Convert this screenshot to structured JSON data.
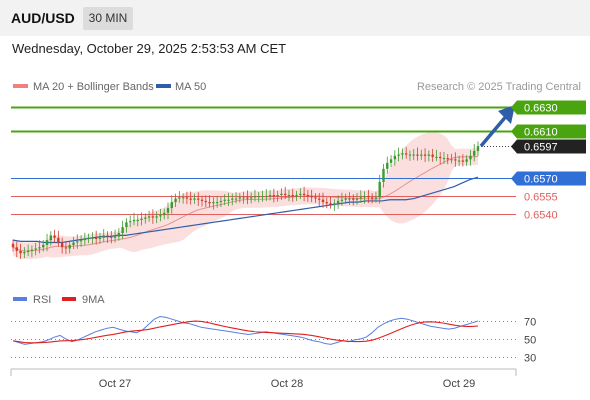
{
  "header": {
    "symbol": "AUD/USD",
    "timeframe": "30 MIN"
  },
  "datetime": "Wednesday, October 29, 2025 2:53:53 AM CET",
  "legend": {
    "ma_bb_label": "MA 20 + Bollinger Bands",
    "ma50_label": "MA 50",
    "ma_bb_color": "#f08080",
    "ma50_color": "#2f5ea8",
    "credit": "Research © 2025 Trading Central"
  },
  "colors": {
    "resistance": "#4aa410",
    "pivot": "#2f6fd6",
    "support": "#e06060",
    "current": "#222222",
    "bull_candle": "#3a9b2e",
    "bear_candle": "#d23b2b",
    "arrow": "#2f5ea8",
    "rsi": "#5b7fe0",
    "rsi_ma": "#e02020"
  },
  "chart_data": [
    {
      "type": "candlestick",
      "title": "AUD/USD",
      "timeframe": "30 MIN",
      "x_ticks": [
        "Oct 27",
        "Oct 28",
        "Oct 29"
      ],
      "ylim": [
        0.65,
        0.664
      ],
      "levels": [
        {
          "value": 0.663,
          "label": "0.6630",
          "kind": "resistance"
        },
        {
          "value": 0.661,
          "label": "0.6610",
          "kind": "resistance"
        },
        {
          "value": 0.6597,
          "label": "0.6597",
          "kind": "current"
        },
        {
          "value": 0.657,
          "label": "0.6570",
          "kind": "pivot"
        },
        {
          "value": 0.6555,
          "label": "0.6555",
          "kind": "support"
        },
        {
          "value": 0.654,
          "label": "0.6540",
          "kind": "support"
        }
      ],
      "close_series": [
        0.6512,
        0.6509,
        0.6507,
        0.6508,
        0.6509,
        0.651,
        0.6511,
        0.6512,
        0.6514,
        0.6518,
        0.6522,
        0.652,
        0.6516,
        0.6512,
        0.6511,
        0.6514,
        0.6516,
        0.6517,
        0.6518,
        0.6519,
        0.652,
        0.652,
        0.6519,
        0.652,
        0.6522,
        0.6521,
        0.652,
        0.6521,
        0.6524,
        0.6529,
        0.6533,
        0.6534,
        0.6535,
        0.6535,
        0.6536,
        0.6537,
        0.6538,
        0.6537,
        0.6538,
        0.6539,
        0.6541,
        0.6545,
        0.655,
        0.6553,
        0.6554,
        0.6554,
        0.6553,
        0.6552,
        0.6553,
        0.6552,
        0.6551,
        0.655,
        0.6549,
        0.655,
        0.655,
        0.6551,
        0.6552,
        0.6552,
        0.6553,
        0.6553,
        0.6554,
        0.6554,
        0.6553,
        0.6554,
        0.6555,
        0.6555,
        0.6555,
        0.6555,
        0.6556,
        0.6555,
        0.6556,
        0.6557,
        0.6556,
        0.6556,
        0.6555,
        0.6556,
        0.6557,
        0.6556,
        0.6555,
        0.6554,
        0.6553,
        0.6552,
        0.655,
        0.6549,
        0.6548,
        0.6549,
        0.6551,
        0.6552,
        0.6553,
        0.6553,
        0.6552,
        0.6553,
        0.6554,
        0.6555,
        0.6554,
        0.6553,
        0.6554,
        0.6567,
        0.6578,
        0.6583,
        0.6586,
        0.6589,
        0.659,
        0.6591,
        0.659,
        0.659,
        0.659,
        0.6589,
        0.659,
        0.6589,
        0.659,
        0.6588,
        0.6588,
        0.6587,
        0.6587,
        0.6586,
        0.6586,
        0.6585,
        0.6585,
        0.6584,
        0.6586,
        0.6589,
        0.6593,
        0.6597
      ],
      "ma50": [
        0.6518,
        0.6517,
        0.6517,
        0.6517,
        0.6516,
        0.6516,
        0.6516,
        0.6517,
        0.6518,
        0.6519,
        0.652,
        0.6521,
        0.6521,
        0.6522,
        0.6522,
        0.6523,
        0.6524,
        0.6525,
        0.6526,
        0.6527,
        0.6528,
        0.6529,
        0.653,
        0.6531,
        0.6532,
        0.6533,
        0.6534,
        0.6535,
        0.6536,
        0.6537,
        0.6538,
        0.6539,
        0.654,
        0.6541,
        0.6542,
        0.6543,
        0.6544,
        0.6545,
        0.6546,
        0.6547,
        0.6548,
        0.6549,
        0.655,
        0.655,
        0.6551,
        0.6551,
        0.6551,
        0.6552,
        0.6552,
        0.6552,
        0.6553,
        0.6555,
        0.6557,
        0.6559,
        0.6561,
        0.6563,
        0.6566,
        0.6569,
        0.6571
      ]
    },
    {
      "type": "line",
      "title": "RSI",
      "series": [
        {
          "name": "RSI"
        },
        {
          "name": "9MA"
        }
      ],
      "levels": [
        70,
        50,
        30
      ],
      "rsi_values": [
        48,
        46,
        44,
        45,
        46,
        47,
        49,
        52,
        54,
        50,
        47,
        49,
        52,
        55,
        58,
        60,
        62,
        63,
        61,
        59,
        58,
        57,
        60,
        66,
        72,
        75,
        74,
        72,
        70,
        68,
        67,
        65,
        63,
        62,
        61,
        60,
        59,
        58,
        57,
        56,
        55,
        56,
        57,
        58,
        57,
        56,
        55,
        54,
        53,
        52,
        50,
        48,
        47,
        45,
        44,
        46,
        48,
        47,
        49,
        50,
        52,
        57,
        63,
        67,
        70,
        72,
        73,
        72,
        70,
        68,
        66,
        64,
        63,
        62,
        61,
        62,
        64,
        66,
        68,
        70
      ]
    }
  ]
}
